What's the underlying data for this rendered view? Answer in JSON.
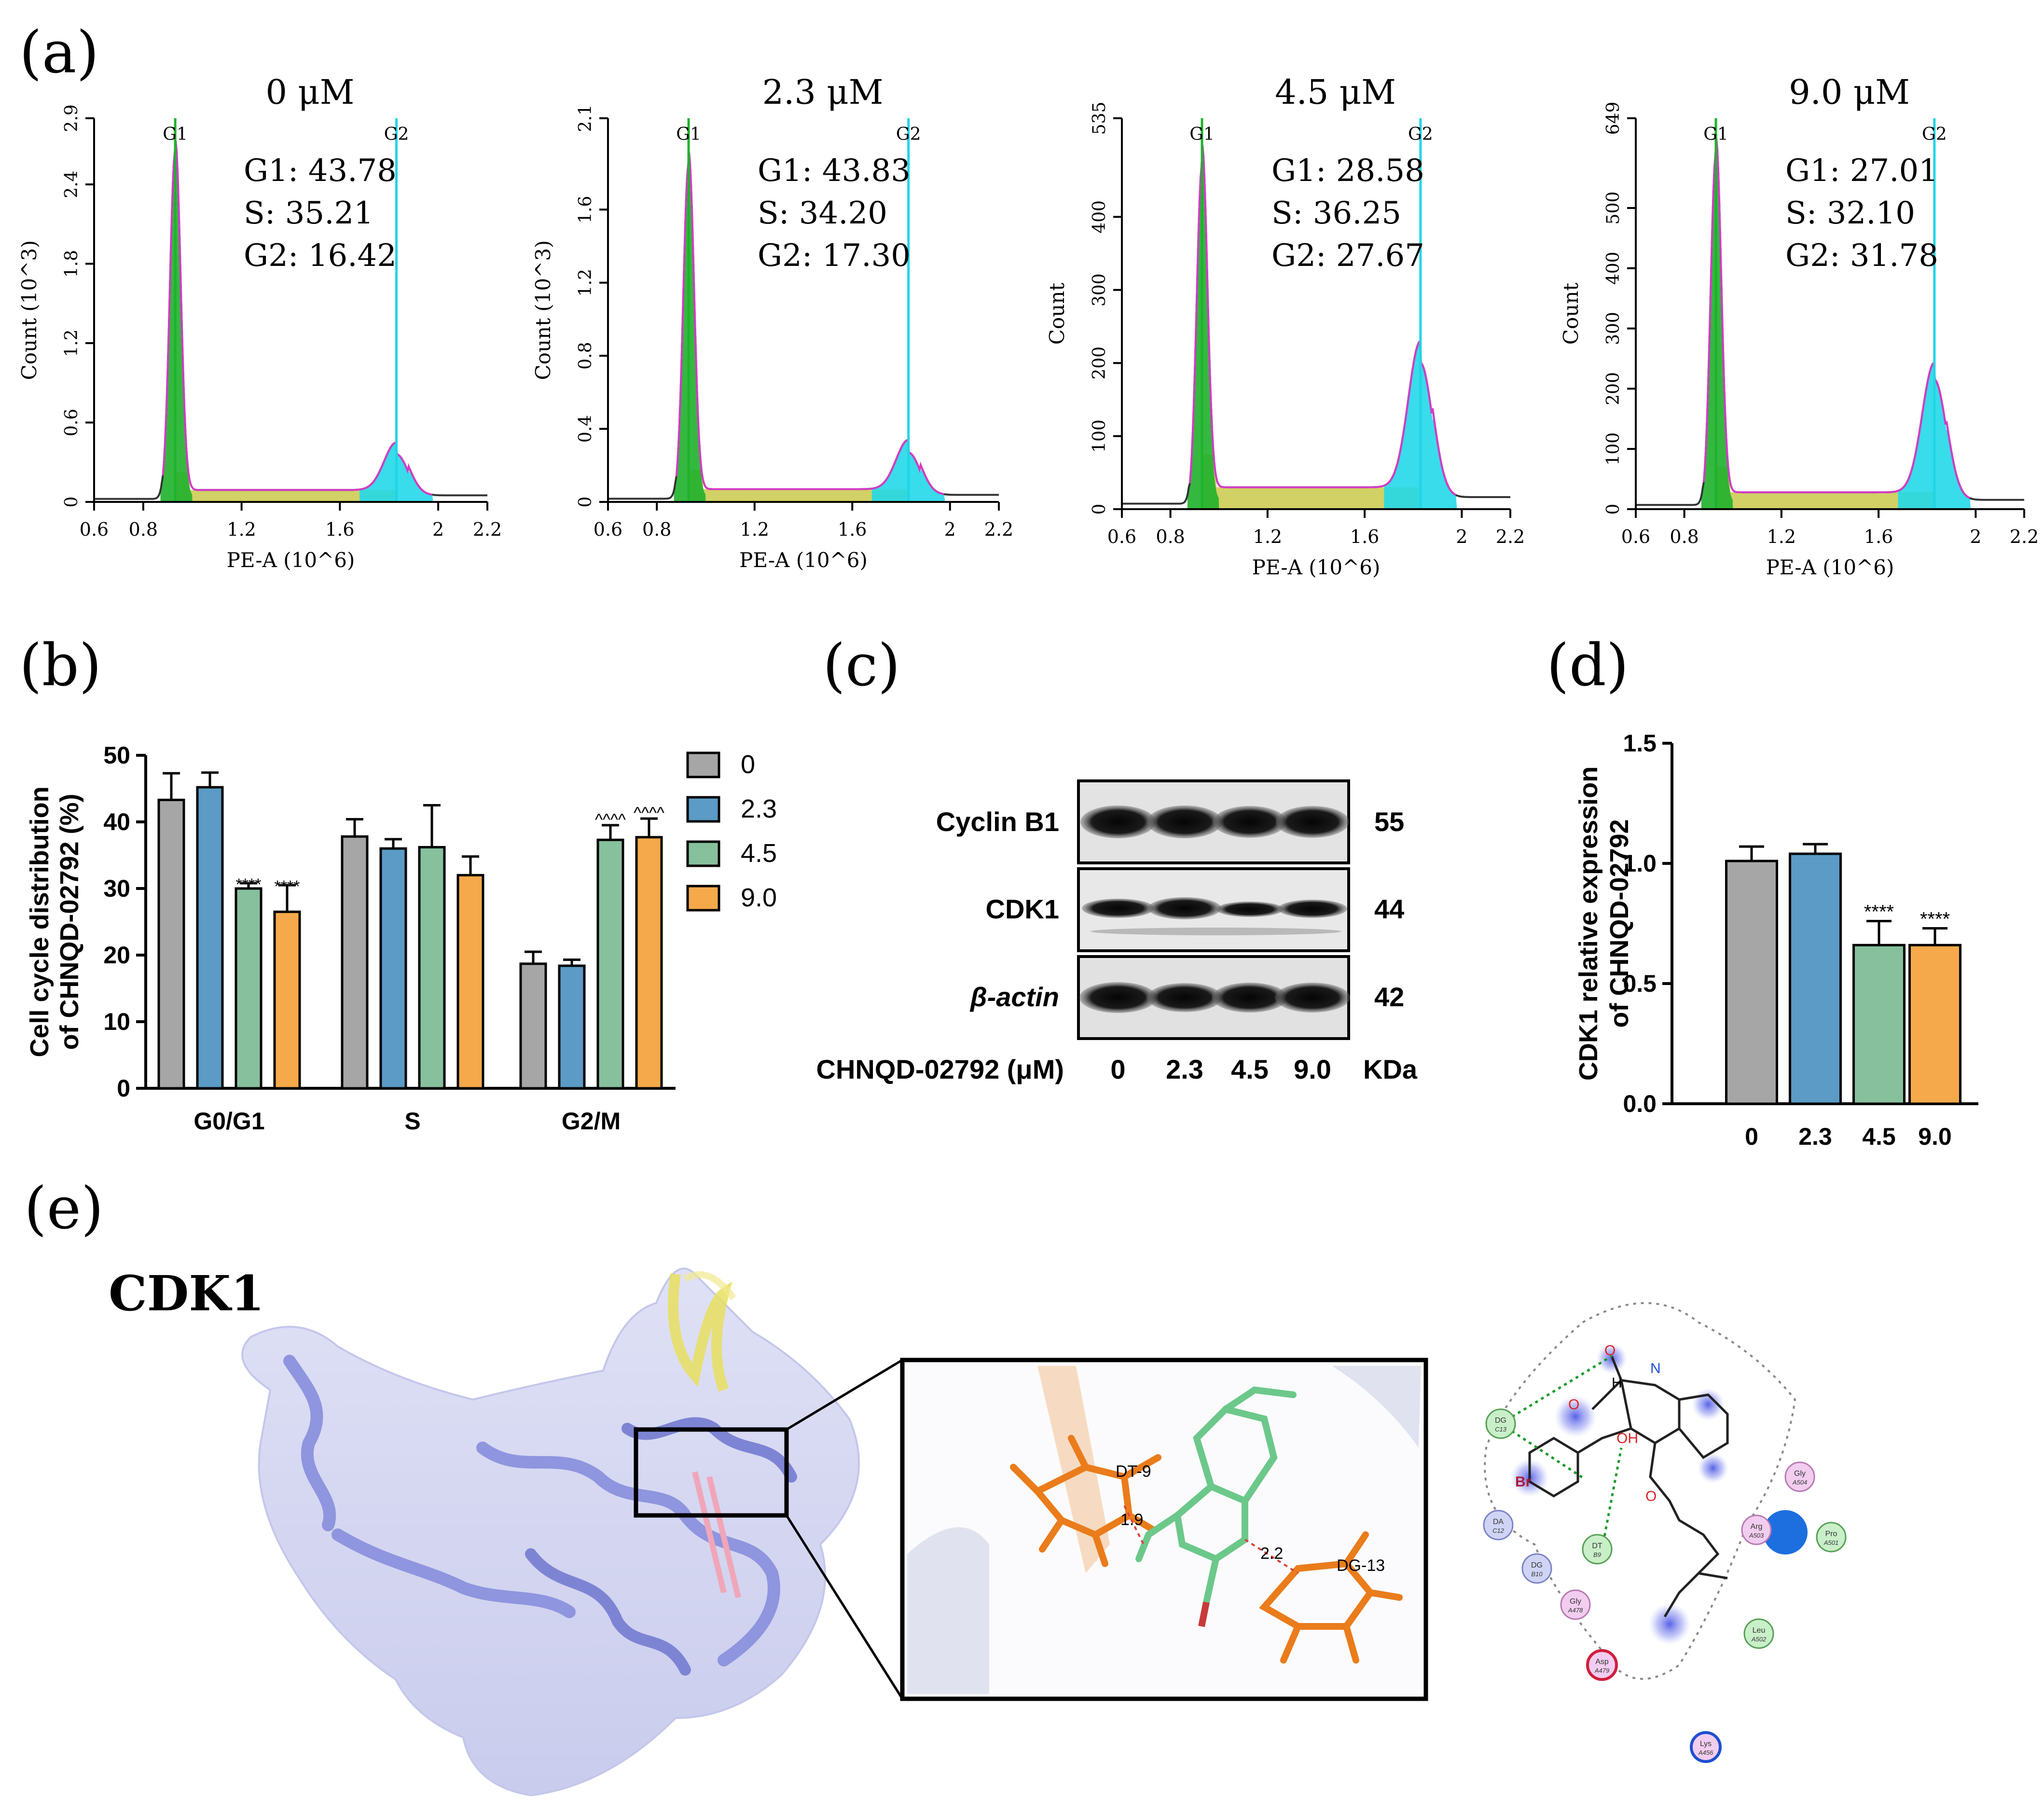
{
  "panel_labels": {
    "a": "(a)",
    "b": "(b)",
    "c": "(c)",
    "d": "(d)",
    "e": "(e)"
  },
  "chart_data": [
    {
      "type": "area",
      "panel": "a",
      "subtype": "flow-cytometry-histograms",
      "xlabel": "PE-A (10^6)",
      "xlim": [
        0.6,
        2.2
      ],
      "xticks": [
        "0.6",
        "0.8",
        "1.2",
        "1.6",
        "2",
        "2.2"
      ],
      "gate_labels": [
        "G1",
        "G2"
      ],
      "gates": {
        "G1": 0.93,
        "G2": 1.83
      },
      "histograms": [
        {
          "title": "0 μM",
          "ylabel": "Count (10^3)",
          "ymax": 2.9,
          "yticks": [
            "0",
            "0.6",
            "1.2",
            "1.8",
            "2.4",
            "2.9"
          ],
          "stats": [
            "G1: 43.78",
            "S: 35.21",
            "G2: 16.42"
          ],
          "g1_peak": 2.65,
          "s_level": 0.09,
          "g2_peak": 0.36
        },
        {
          "title": "2.3 μM",
          "ylabel": "Count (10^3)",
          "ymax": 2.1,
          "yticks": [
            "0",
            "0.4",
            "0.8",
            "1.2",
            "1.6",
            "2.1"
          ],
          "stats": [
            "G1: 43.83",
            "S: 34.20",
            "G2: 17.30"
          ],
          "g1_peak": 1.85,
          "s_level": 0.07,
          "g2_peak": 0.27
        },
        {
          "title": "4.5 μM",
          "ylabel": "Count",
          "ymax": 535,
          "yticks": [
            "0",
            "100",
            "200",
            "300",
            "400",
            "535"
          ],
          "stats": [
            "G1: 28.58",
            "S: 36.25",
            "G2: 27.67"
          ],
          "g1_peak": 470,
          "s_level": 30,
          "g2_peak": 200
        },
        {
          "title": "9.0 μM",
          "ylabel": "Count",
          "ymax": 649,
          "yticks": [
            "0",
            "100",
            "200",
            "300",
            "400",
            "500",
            "649"
          ],
          "stats": [
            "G1: 27.01",
            "S: 32.10",
            "G2: 31.78"
          ],
          "g1_peak": 590,
          "s_level": 28,
          "g2_peak": 215
        }
      ]
    },
    {
      "type": "bar",
      "panel": "b",
      "ylabel_lines": [
        "Cell cycle distribution",
        "of CHNQD-02792 (%)"
      ],
      "categories": [
        "G0/G1",
        "S",
        "G2/M"
      ],
      "ylim": [
        0,
        50
      ],
      "yticks": [
        "0",
        "10",
        "20",
        "30",
        "40",
        "50"
      ],
      "series": [
        {
          "name": "0",
          "color": "#a6a6a6",
          "values": [
            43.3,
            37.8,
            18.7
          ],
          "errors": [
            4.0,
            2.6,
            1.8
          ],
          "sig": [
            "",
            "",
            ""
          ]
        },
        {
          "name": "2.3",
          "color": "#5b9bc6",
          "values": [
            45.2,
            36.0,
            18.4
          ],
          "errors": [
            2.2,
            1.4,
            0.9
          ],
          "sig": [
            "",
            "",
            ""
          ]
        },
        {
          "name": "4.5",
          "color": "#86c09d",
          "values": [
            30.0,
            36.2,
            37.3
          ],
          "errors": [
            0.8,
            6.3,
            2.2
          ],
          "sig": [
            "****",
            "",
            "^^^^"
          ]
        },
        {
          "name": "9.0",
          "color": "#f5a94a",
          "values": [
            26.5,
            32.0,
            37.7
          ],
          "errors": [
            4.0,
            2.8,
            2.8
          ],
          "sig": [
            "****",
            "",
            "^^^^"
          ]
        }
      ]
    },
    {
      "type": "bar",
      "panel": "d",
      "ylabel_lines": [
        "CDK1 relative expression",
        "of CHNQD-02792"
      ],
      "categories": [
        "0",
        "2.3",
        "4.5",
        "9.0"
      ],
      "ylim": [
        0,
        1.5
      ],
      "yticks": [
        "0.0",
        "0.5",
        "1.0",
        "1.5"
      ],
      "values": [
        1.01,
        1.04,
        0.66,
        0.66
      ],
      "errors": [
        0.06,
        0.04,
        0.1,
        0.07
      ],
      "colors": [
        "#a6a6a6",
        "#5b9bc6",
        "#86c09d",
        "#f5a94a"
      ],
      "sig": [
        "",
        "",
        "****",
        "****"
      ]
    }
  ],
  "western_blot": {
    "rows": [
      {
        "label": "Cyclin B1",
        "kda": "55"
      },
      {
        "label": "CDK1",
        "kda": "44"
      },
      {
        "label": "β-actin",
        "kda": "42"
      }
    ],
    "x_title": "CHNQD-02792 (μM)",
    "lanes": [
      "0",
      "2.3",
      "4.5",
      "9.0"
    ],
    "kda_label": "KDa"
  },
  "docking": {
    "title": "CDK1",
    "zoom_labels": [
      "DT-9",
      "1.9",
      "2.2",
      "DG-13"
    ],
    "residues": [
      {
        "name": "DG",
        "num": "C13",
        "color": "#c9efc9",
        "stroke": "#55a055"
      },
      {
        "name": "DT",
        "num": "B9",
        "color": "#c9efc9",
        "stroke": "#55a055"
      },
      {
        "name": "DA",
        "num": "C12",
        "color": "#cfd4f5",
        "stroke": "#7a82c8"
      },
      {
        "name": "DG",
        "num": "B10",
        "color": "#cfd4f5",
        "stroke": "#7a82c8"
      },
      {
        "name": "Gly",
        "num": "A478",
        "color": "#f2cdf0",
        "stroke": "#b77ab2"
      },
      {
        "name": "Asp",
        "num": "A479",
        "color": "#f2cdf0",
        "stroke": "#d01f3c"
      },
      {
        "name": "Gly",
        "num": "A504",
        "color": "#f2cdf0",
        "stroke": "#b77ab2"
      },
      {
        "name": "Arg",
        "num": "A503",
        "color": "#f2cdf0",
        "stroke": "#b77ab2"
      },
      {
        "name": "Pro",
        "num": "A501",
        "color": "#c9efc9",
        "stroke": "#55a055"
      },
      {
        "name": "Leu",
        "num": "A502",
        "color": "#c9efc9",
        "stroke": "#55a055"
      },
      {
        "name": "Lys",
        "num": "A456",
        "color": "#f2cdf0",
        "stroke": "#1f4fd0"
      }
    ],
    "atom_labels": [
      "O",
      "N",
      "H",
      "O",
      "OH",
      "Br",
      "O"
    ]
  }
}
